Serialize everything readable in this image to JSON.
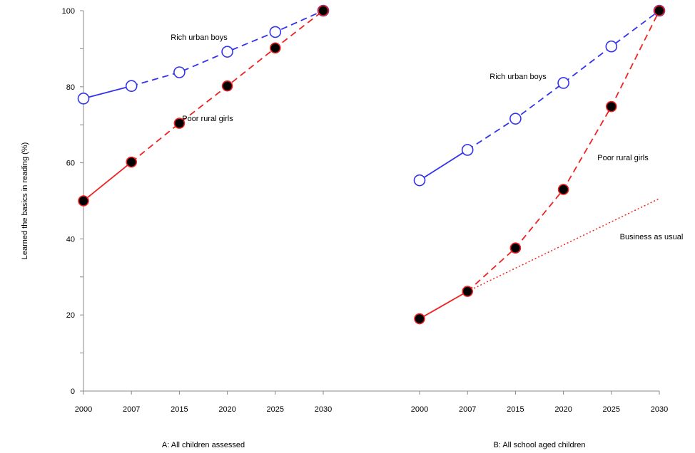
{
  "chart_data": {
    "type": "line",
    "ylabel": "Learned the basics in reading (%)",
    "ylim": [
      0,
      100
    ],
    "yticks": [
      0,
      20,
      40,
      60,
      80,
      100
    ],
    "colors": {
      "rich": "#3333ee",
      "poor": "#ee2222",
      "business": "#ee2222",
      "axis": "#888888"
    },
    "panels": [
      {
        "caption": "A: All children assessed",
        "categories": [
          "2000",
          "2007",
          "2015",
          "2020",
          "2025",
          "2030"
        ],
        "series": [
          {
            "key": "rich",
            "marker": "open-circle",
            "values": [
              76.9,
              80.2,
              83.8,
              89.2,
              94.4,
              100
            ],
            "solid_until_index": 1,
            "label": "Rich urban boys"
          },
          {
            "key": "poor",
            "marker": "filled-circle",
            "values": [
              50,
              60.2,
              70.4,
              80.2,
              90.2,
              100
            ],
            "solid_until_index": 1,
            "label": "Poor rural girls"
          }
        ]
      },
      {
        "caption": "B: All school aged children",
        "categories": [
          "2000",
          "2007",
          "2015",
          "2020",
          "2025",
          "2030"
        ],
        "series": [
          {
            "key": "rich",
            "marker": "open-circle",
            "values": [
              55.4,
              63.4,
              71.6,
              81,
              90.6,
              100
            ],
            "solid_until_index": 1,
            "label": "Rich urban boys"
          },
          {
            "key": "poor",
            "marker": "filled-circle",
            "values": [
              19,
              26.2,
              37.6,
              53,
              74.8,
              100
            ],
            "solid_until_index": 1,
            "label": "Poor rural girls"
          },
          {
            "key": "business",
            "marker": "none",
            "line_style": "dotted",
            "start_index": 1,
            "values": [
              null,
              26.2,
              null,
              null,
              null,
              50.6
            ],
            "label": "Business as usual"
          }
        ]
      }
    ]
  }
}
